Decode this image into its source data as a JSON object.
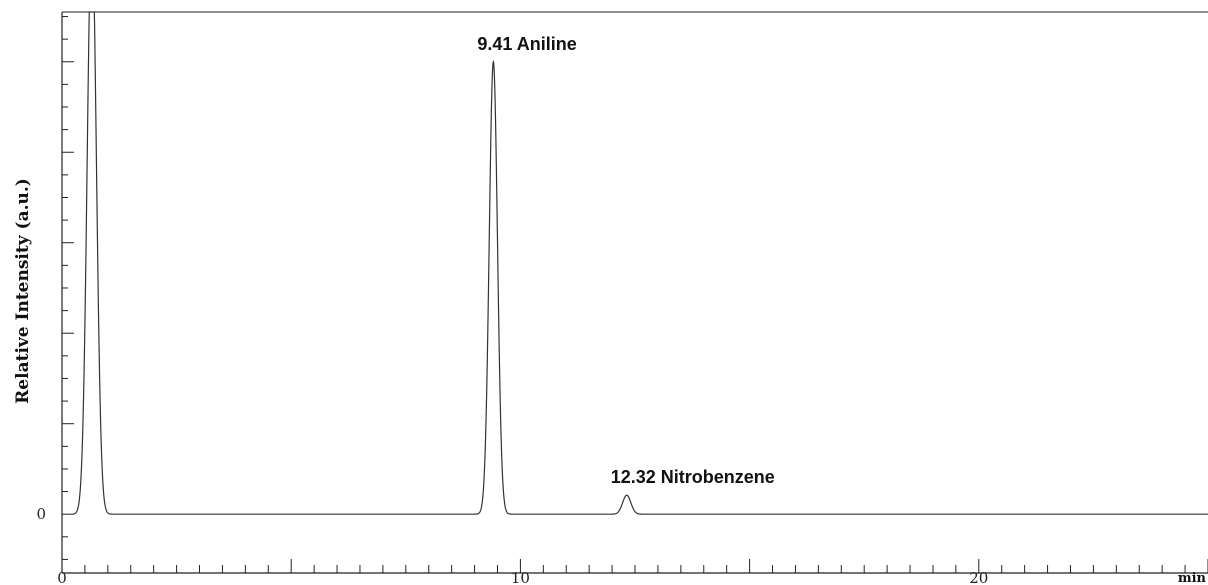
{
  "chart_data": {
    "type": "line",
    "xlabel": "min",
    "ylabel": "Relative Intensity (a.u.)",
    "xlim": [
      0,
      25
    ],
    "ylim": [
      -1.3,
      11.1
    ],
    "x_ticks": [
      0,
      10,
      20
    ],
    "y_ticks": [
      0
    ],
    "grid": false,
    "series": [
      {
        "peaks": [
          {
            "x": 0.65,
            "height": 13.0,
            "width": 0.1
          },
          {
            "x": 9.41,
            "height": 10.0,
            "width": 0.09
          },
          {
            "x": 12.32,
            "height": 0.42,
            "width": 0.09
          }
        ]
      }
    ],
    "annotations": [
      {
        "text": "9.41 Aniline",
        "x": 9.41,
        "y": 10.0
      },
      {
        "text": "12.32 Nitrobenzene",
        "x": 12.32,
        "y": 0.42
      }
    ]
  }
}
